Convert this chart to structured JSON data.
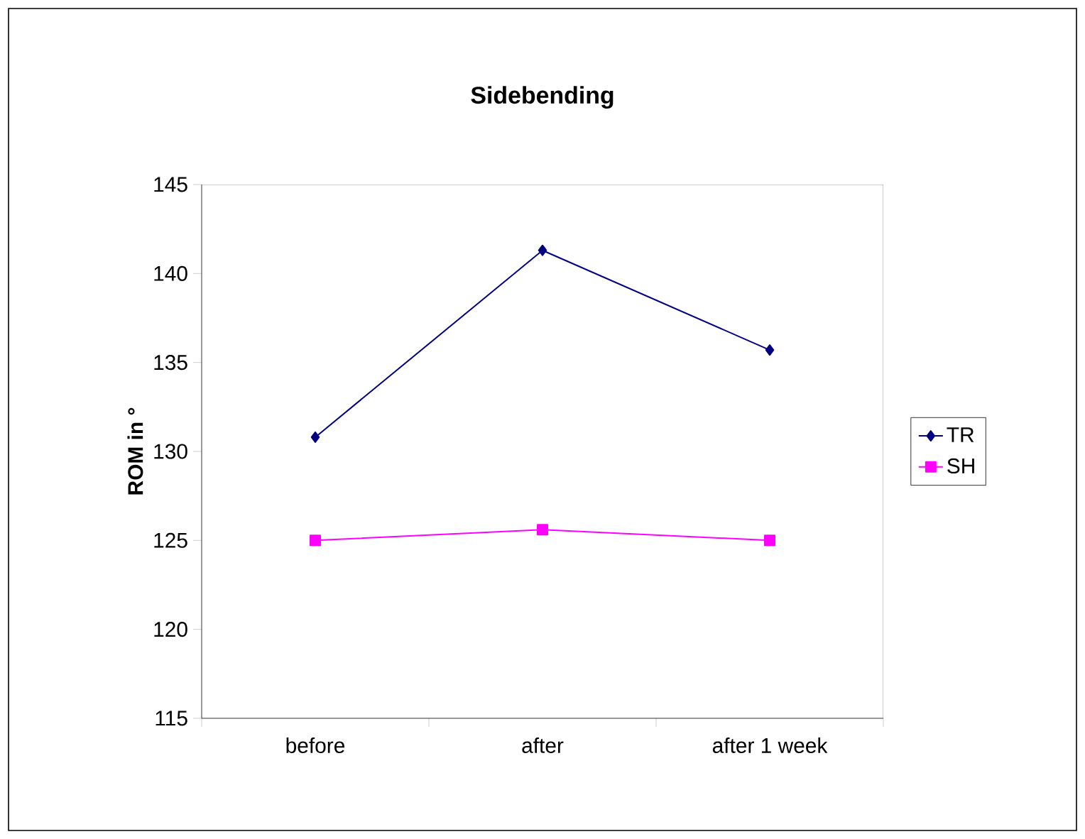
{
  "chart_data": {
    "type": "line",
    "title": "Sidebending",
    "ylabel": "ROM in °",
    "categories": [
      "before",
      "after",
      "after 1 week"
    ],
    "series": [
      {
        "name": "TR",
        "color": "#000080",
        "marker": "diamond",
        "values": [
          130.8,
          141.3,
          135.7
        ]
      },
      {
        "name": "SH",
        "color": "#ff00ff",
        "marker": "square",
        "values": [
          125.0,
          125.6,
          125.0
        ]
      }
    ],
    "ylim": [
      115,
      145
    ],
    "yticks": [
      115,
      120,
      125,
      130,
      135,
      140,
      145
    ],
    "grid": false,
    "legend": "right"
  }
}
